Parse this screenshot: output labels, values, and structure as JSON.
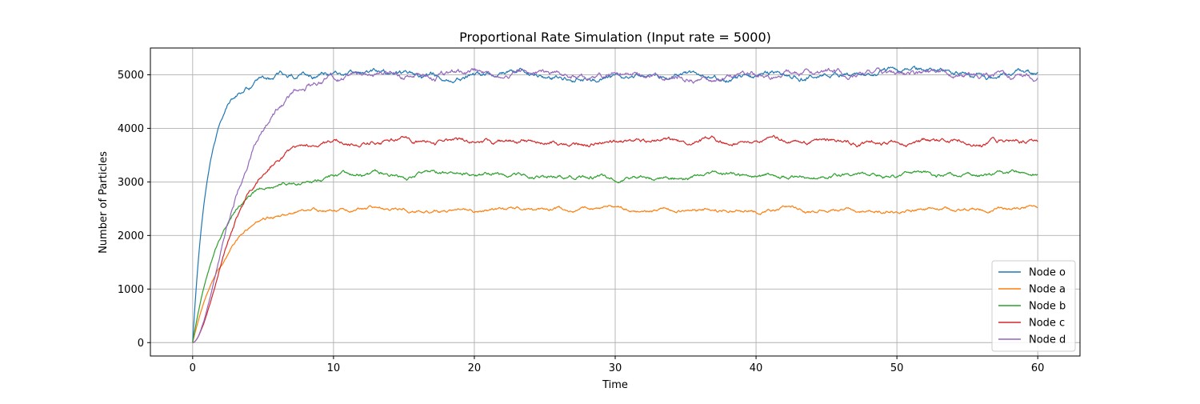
{
  "chart_data": {
    "type": "line",
    "title": "Proportional Rate Simulation (Input rate = 5000)",
    "xlabel": "Time",
    "ylabel": "Number of Particles",
    "xlim": [
      -3,
      63
    ],
    "ylim": [
      -250,
      5500
    ],
    "x_ticks": [
      0,
      10,
      20,
      30,
      40,
      50,
      60
    ],
    "y_ticks": [
      0,
      1000,
      2000,
      3000,
      4000,
      5000
    ],
    "grid": true,
    "legend_position": "lower-right",
    "series": [
      {
        "name": "Node o",
        "color": "#1f77b4",
        "target": 5000,
        "tau": 1.1,
        "order": 1,
        "noise": 55,
        "seed": 11
      },
      {
        "name": "Node a",
        "color": "#ff7f0e",
        "target": 2500,
        "tau": 2.2,
        "order": 1,
        "noise": 35,
        "seed": 23
      },
      {
        "name": "Node b",
        "color": "#2ca02c",
        "target": 3120,
        "tau": 2.0,
        "order": 1,
        "noise": 42,
        "seed": 37
      },
      {
        "name": "Node c",
        "color": "#d62728",
        "target": 3750,
        "tau": 1.5,
        "order": 2,
        "noise": 45,
        "seed": 51
      },
      {
        "name": "Node d",
        "color": "#9467bd",
        "target": 5000,
        "tau": 1.7,
        "order": 2,
        "noise": 60,
        "seed": 73
      }
    ]
  }
}
